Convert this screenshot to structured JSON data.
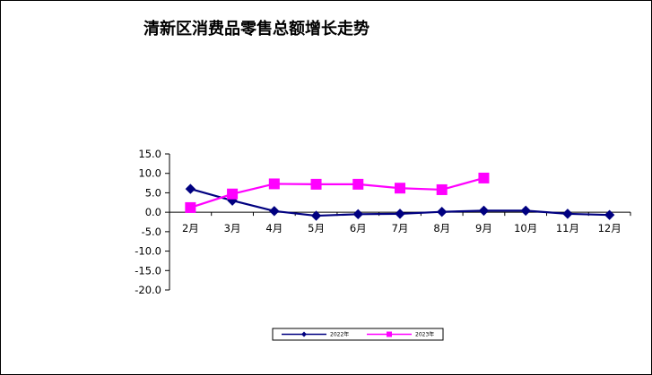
{
  "chart_data": {
    "type": "line",
    "title": "清新区消费品零售总额增长走势",
    "categories": [
      "2月",
      "3月",
      "4月",
      "5月",
      "6月",
      "7月",
      "8月",
      "9月",
      "10月",
      "11月",
      "12月"
    ],
    "y_tick_labels": [
      "15.0",
      "10.0",
      "5.0",
      "0.0",
      "-5.0",
      "-10.0",
      "-15.0",
      "-20.0"
    ],
    "ylim": [
      -20,
      15
    ],
    "grid": false,
    "legend_position": "bottom",
    "series": [
      {
        "name": "2022年",
        "color": "#000080",
        "marker": "diamond",
        "values": [
          6.0,
          3.0,
          0.3,
          -0.9,
          -0.5,
          -0.4,
          0.1,
          0.4,
          0.4,
          -0.4,
          -0.7
        ]
      },
      {
        "name": "2023年",
        "color": "#ff00ff",
        "marker": "square",
        "values": [
          1.2,
          4.7,
          7.3,
          7.2,
          7.2,
          6.2,
          5.8,
          8.8,
          null,
          null,
          null
        ]
      }
    ]
  }
}
